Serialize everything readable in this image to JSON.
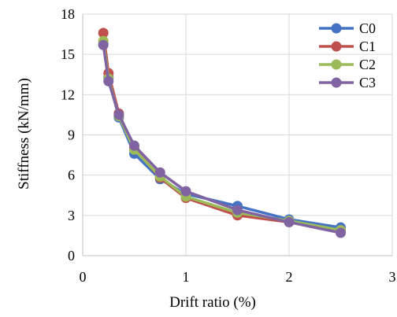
{
  "chart_data": {
    "type": "line",
    "title": "",
    "xlabel": "Drift ratio (%)",
    "ylabel": "Stiffness (kN/mm)",
    "xlim": [
      0,
      3
    ],
    "ylim": [
      0,
      18
    ],
    "xticks": [
      0,
      1,
      2,
      3
    ],
    "yticks": [
      0,
      3,
      6,
      9,
      12,
      15,
      18
    ],
    "grid": "vertical-and-horizontal",
    "legend_position": "top-right",
    "series": [
      {
        "name": "C0",
        "color": "#4472c4",
        "x": [
          0.2,
          0.25,
          0.35,
          0.5,
          0.75,
          1.0,
          1.5,
          2.0,
          2.5
        ],
        "y": [
          15.8,
          13.3,
          10.3,
          7.6,
          5.7,
          4.6,
          3.7,
          2.7,
          2.1
        ]
      },
      {
        "name": "C1",
        "color": "#c0504d",
        "x": [
          0.2,
          0.25,
          0.35,
          0.5,
          0.75,
          1.0,
          1.5,
          2.0,
          2.5
        ],
        "y": [
          16.6,
          13.6,
          10.6,
          8.0,
          5.8,
          4.3,
          3.0,
          2.5,
          1.9
        ]
      },
      {
        "name": "C2",
        "color": "#9bbb59",
        "x": [
          0.2,
          0.25,
          0.35,
          0.5,
          0.75,
          1.0,
          1.5,
          2.0,
          2.5
        ],
        "y": [
          16.0,
          13.2,
          10.4,
          7.9,
          5.9,
          4.4,
          3.2,
          2.6,
          1.9
        ]
      },
      {
        "name": "C3",
        "color": "#8064a2",
        "x": [
          0.2,
          0.25,
          0.35,
          0.5,
          0.75,
          1.0,
          1.5,
          2.0,
          2.5
        ],
        "y": [
          15.7,
          13.0,
          10.5,
          8.2,
          6.2,
          4.8,
          3.4,
          2.5,
          1.7
        ]
      }
    ]
  }
}
